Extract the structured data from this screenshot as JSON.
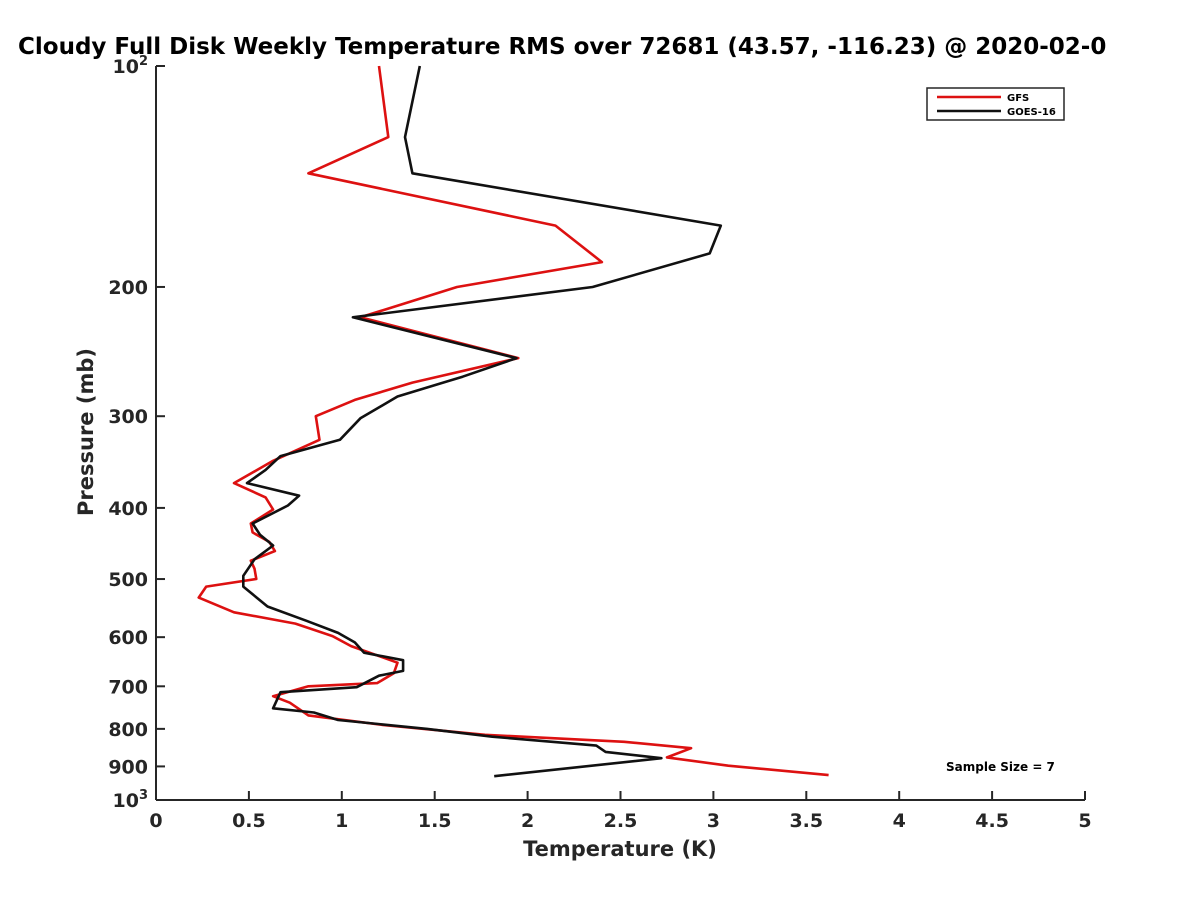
{
  "chart_data": {
    "type": "line",
    "title": "Cloudy Full Disk Weekly Temperature RMS over 72681 (43.57, -116.23) @ 2020-02-0",
    "xlabel": "Temperature (K)",
    "ylabel": "Pressure (mb)",
    "xlim": [
      0,
      5
    ],
    "ylim": [
      100,
      1000
    ],
    "y_scale": "log",
    "y_reversed": true,
    "grid": false,
    "legend_position": "top-right",
    "x_ticks": [
      "0",
      "0.5",
      "1",
      "1.5",
      "2",
      "2.5",
      "3",
      "3.5",
      "4",
      "4.5",
      "5"
    ],
    "y_ticks": [
      {
        "value": 100,
        "base": "10",
        "exp": "2"
      },
      {
        "value": 200,
        "label": "200"
      },
      {
        "value": 300,
        "label": "300"
      },
      {
        "value": 400,
        "label": "400"
      },
      {
        "value": 500,
        "label": "500"
      },
      {
        "value": 600,
        "label": "600"
      },
      {
        "value": 700,
        "label": "700"
      },
      {
        "value": 800,
        "label": "800"
      },
      {
        "value": 900,
        "label": "900"
      },
      {
        "value": 1000,
        "base": "10",
        "exp": "3"
      }
    ],
    "annotation": "Sample Size = 7",
    "series": [
      {
        "name": "GFS",
        "color": "#dd1111",
        "points": [
          [
            1.2,
            100
          ],
          [
            1.25,
            125
          ],
          [
            0.82,
            140
          ],
          [
            2.15,
            165
          ],
          [
            2.4,
            185
          ],
          [
            1.62,
            200
          ],
          [
            1.1,
            220
          ],
          [
            1.95,
            250
          ],
          [
            1.38,
            270
          ],
          [
            1.07,
            285
          ],
          [
            0.86,
            300
          ],
          [
            0.88,
            323
          ],
          [
            0.63,
            345
          ],
          [
            0.42,
            370
          ],
          [
            0.59,
            387
          ],
          [
            0.63,
            402
          ],
          [
            0.51,
            420
          ],
          [
            0.52,
            432
          ],
          [
            0.61,
            445
          ],
          [
            0.64,
            458
          ],
          [
            0.51,
            472
          ],
          [
            0.53,
            484
          ],
          [
            0.54,
            500
          ],
          [
            0.27,
            512
          ],
          [
            0.23,
            530
          ],
          [
            0.42,
            555
          ],
          [
            0.75,
            575
          ],
          [
            0.95,
            598
          ],
          [
            1.05,
            617
          ],
          [
            1.3,
            650
          ],
          [
            1.28,
            672
          ],
          [
            1.19,
            693
          ],
          [
            0.82,
            700
          ],
          [
            0.63,
            722
          ],
          [
            0.72,
            737
          ],
          [
            0.82,
            767
          ],
          [
            1.22,
            790
          ],
          [
            1.77,
            815
          ],
          [
            2.52,
            833
          ],
          [
            2.88,
            850
          ],
          [
            2.75,
            875
          ],
          [
            3.08,
            898
          ],
          [
            3.62,
            925
          ]
        ]
      },
      {
        "name": "GOES-16",
        "color": "#111111",
        "points": [
          [
            1.42,
            100
          ],
          [
            1.34,
            125
          ],
          [
            1.38,
            140
          ],
          [
            3.04,
            165
          ],
          [
            2.98,
            180
          ],
          [
            2.35,
            200
          ],
          [
            1.06,
            220
          ],
          [
            1.94,
            250
          ],
          [
            1.65,
            265
          ],
          [
            1.3,
            282
          ],
          [
            1.1,
            302
          ],
          [
            0.99,
            323
          ],
          [
            0.67,
            340
          ],
          [
            0.59,
            355
          ],
          [
            0.49,
            370
          ],
          [
            0.77,
            385
          ],
          [
            0.71,
            397
          ],
          [
            0.52,
            420
          ],
          [
            0.56,
            435
          ],
          [
            0.63,
            450
          ],
          [
            0.53,
            470
          ],
          [
            0.47,
            495
          ],
          [
            0.47,
            512
          ],
          [
            0.6,
            545
          ],
          [
            0.81,
            570
          ],
          [
            0.98,
            592
          ],
          [
            1.07,
            610
          ],
          [
            1.12,
            630
          ],
          [
            1.33,
            645
          ],
          [
            1.33,
            667
          ],
          [
            1.2,
            677
          ],
          [
            1.08,
            702
          ],
          [
            0.67,
            713
          ],
          [
            0.63,
            750
          ],
          [
            0.85,
            760
          ],
          [
            0.98,
            778
          ],
          [
            1.46,
            800
          ],
          [
            1.81,
            820
          ],
          [
            2.37,
            843
          ],
          [
            2.42,
            860
          ],
          [
            2.72,
            877
          ],
          [
            1.82,
            928
          ]
        ]
      }
    ]
  }
}
